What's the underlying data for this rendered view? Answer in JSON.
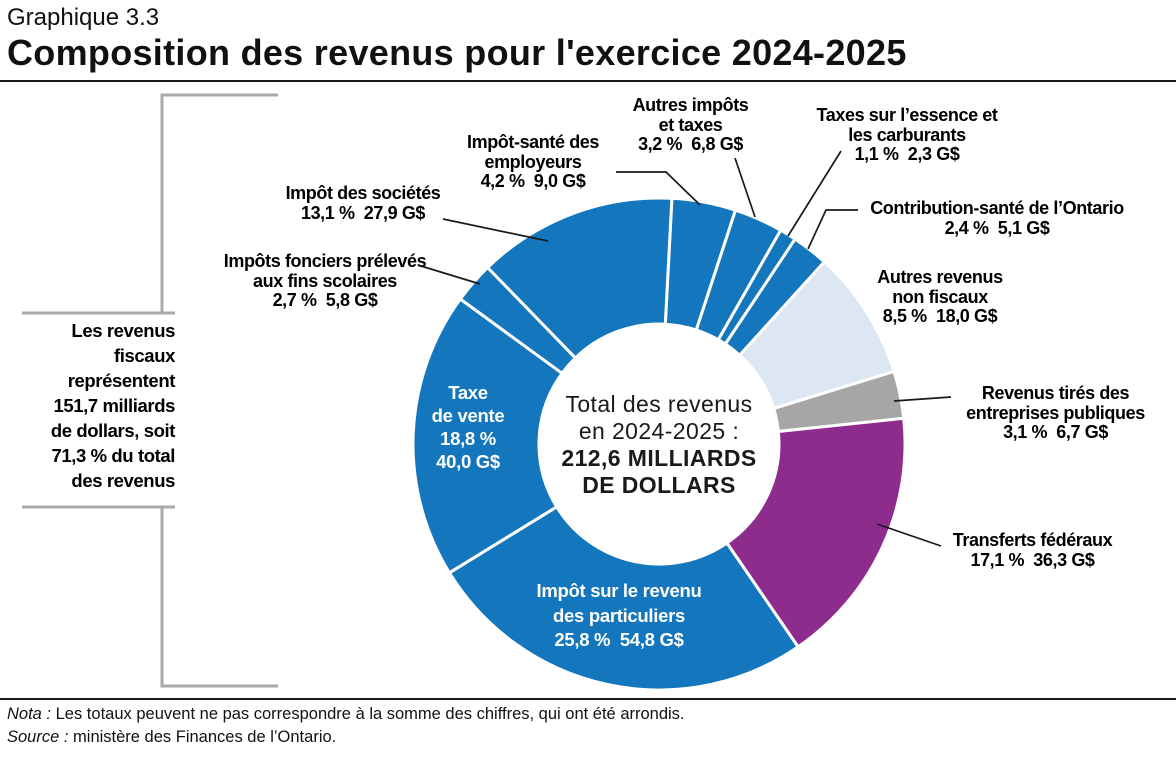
{
  "header": {
    "graph_number": "Graphique 3.3",
    "title": "Composition des revenus pour l'exercice 2024-2025"
  },
  "annotation": {
    "text": "Les revenus\nfiscaux\nreprésentent\n151,7 milliards\nde dollars, soit\n71,3 % du total\ndes revenus"
  },
  "center": {
    "line1": "Total des revenus",
    "line2": "en 2024-2025 :",
    "line3": "212,6 MILLIARDS",
    "line4": "DE DOLLARS"
  },
  "labels": {
    "autres_impots": {
      "text": "Autres impôts\net taxes",
      "value": "3,2 %  6,8 G$"
    },
    "impot_sante": {
      "text": "Impôt-santé des\nemployeurs",
      "value": "4,2 %  9,0 G$"
    },
    "societes": {
      "text": "Impôt des sociétés",
      "value": "13,1 %  27,9 G$"
    },
    "fonciers": {
      "text": "Impôts fonciers prélevés\naux fins scolaires",
      "value": "2,7 %  5,8 G$"
    },
    "essence": {
      "text": "Taxes sur l’essence et\nles carburants",
      "value": "1,1 %  2,3 G$"
    },
    "contribution": {
      "text": "Contribution-santé de l’Ontario",
      "value": "2,4 %  5,1 G$"
    },
    "autres_revenus": {
      "text": "Autres revenus\nnon fiscaux",
      "value": "8,5 %  18,0 G$"
    },
    "entreprises": {
      "text": "Revenus tirés des\nentreprises publiques",
      "value": "3,1 %  6,7 G$"
    },
    "transferts": {
      "text": "Transferts fédéraux",
      "value": "17,1 %  36,3 G$"
    },
    "taxe_vente": {
      "text": "Taxe\nde vente",
      "value": "18,8 %\n40,0 G$"
    },
    "particuliers": {
      "text": "Impôt sur le revenu\ndes particuliers",
      "value": "25,8 %  54,8 G$"
    }
  },
  "footer": {
    "nota_label": "Nota :",
    "nota_text": " Les totaux peuvent ne pas correspondre à la somme des chiffres, qui ont été arrondis.",
    "source_label": "Source :",
    "source_text": " ministère des Finances de l’Ontario."
  },
  "colors": {
    "blue": "#1476BC",
    "light_blue": "#DCE7F3",
    "gray": "#A6A6A6",
    "purple": "#8E2C8E",
    "leader": "#1a1a1a",
    "bracket": "#A9A9A9"
  },
  "chart_data": {
    "type": "pie",
    "subtype": "donut",
    "title": "Composition des revenus pour l'exercice 2024-2025",
    "center_text": "Total des revenus en 2024-2025 : 212,6 milliards de dollars",
    "total_value_billions": 212.6,
    "units": "G$ (milliards de dollars)",
    "direction": "clockwise",
    "start_angle_deg": 3,
    "segments": [
      {
        "id": "impot-sante-employeurs",
        "label": "Impôt-santé des employeurs",
        "percent": 4.2,
        "value_g": 9.0,
        "color_key": "blue"
      },
      {
        "id": "autres-impots-taxes",
        "label": "Autres impôts et taxes",
        "percent": 3.2,
        "value_g": 6.8,
        "color_key": "blue"
      },
      {
        "id": "taxes-essence-carburants",
        "label": "Taxes sur l’essence et les carburants",
        "percent": 1.1,
        "value_g": 2.3,
        "color_key": "blue"
      },
      {
        "id": "contribution-sante-ontario",
        "label": "Contribution-santé de l’Ontario",
        "percent": 2.4,
        "value_g": 5.1,
        "color_key": "blue"
      },
      {
        "id": "autres-revenus-non-fiscaux",
        "label": "Autres revenus non fiscaux",
        "percent": 8.5,
        "value_g": 18.0,
        "color_key": "light_blue"
      },
      {
        "id": "revenus-entreprises-publiques",
        "label": "Revenus tirés des entreprises publiques",
        "percent": 3.1,
        "value_g": 6.7,
        "color_key": "gray"
      },
      {
        "id": "transferts-federaux",
        "label": "Transferts fédéraux",
        "percent": 17.1,
        "value_g": 36.3,
        "color_key": "purple"
      },
      {
        "id": "impot-revenu-particuliers",
        "label": "Impôt sur le revenu des particuliers",
        "percent": 25.8,
        "value_g": 54.8,
        "color_key": "blue"
      },
      {
        "id": "taxe-de-vente",
        "label": "Taxe de vente",
        "percent": 18.8,
        "value_g": 40.0,
        "color_key": "blue"
      },
      {
        "id": "impots-fonciers-scolaires",
        "label": "Impôts fonciers prélevés aux fins scolaires",
        "percent": 2.7,
        "value_g": 5.8,
        "color_key": "blue"
      },
      {
        "id": "impot-des-societes",
        "label": "Impôt des sociétés",
        "percent": 13.1,
        "value_g": 27.9,
        "color_key": "blue"
      }
    ],
    "callout": {
      "text": "Les revenus fiscaux représentent 151,7 milliards de dollars, soit 71,3 % du total des revenus",
      "value_billions": 151.7,
      "percent_of_total": 71.3
    },
    "notes": [
      "Nota : Les totaux peuvent ne pas correspondre à la somme des chiffres, qui ont été arrondis.",
      "Source : ministère des Finances de l’Ontario."
    ]
  }
}
